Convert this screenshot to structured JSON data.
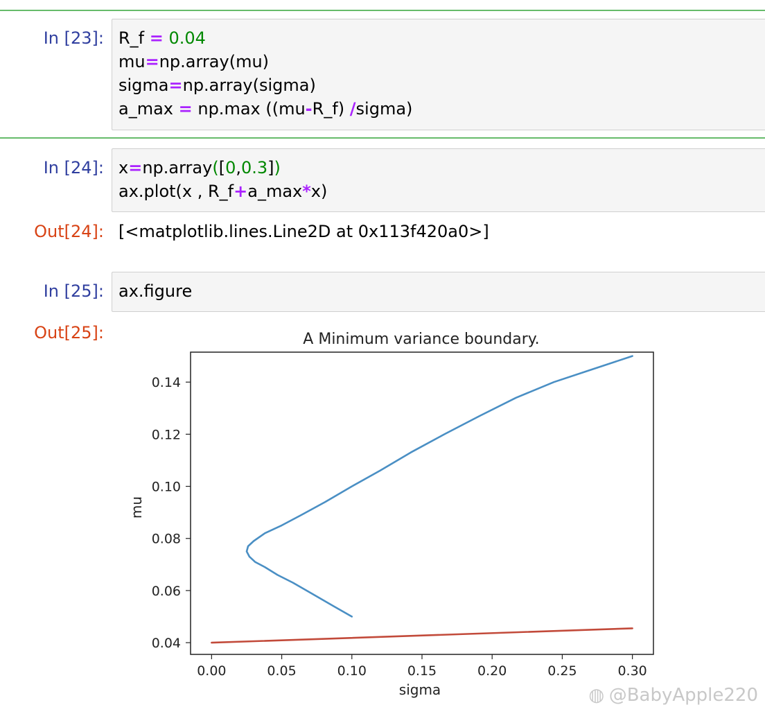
{
  "cells": [
    {
      "prompt": "In [23]:",
      "lines": [
        [
          [
            "R_f ",
            "txt"
          ],
          [
            "=",
            "op"
          ],
          [
            " ",
            "txt"
          ],
          [
            "0.04",
            "num"
          ]
        ],
        [
          [
            "mu",
            "txt"
          ],
          [
            "=",
            "op"
          ],
          [
            "np.array(mu)",
            "txt"
          ]
        ],
        [
          [
            "sigma",
            "txt"
          ],
          [
            "=",
            "op"
          ],
          [
            "np.array(sigma)",
            "txt"
          ]
        ],
        [
          [
            "a_max ",
            "txt"
          ],
          [
            "=",
            "op"
          ],
          [
            " np.max ((mu",
            "txt"
          ],
          [
            "-",
            "op"
          ],
          [
            "R_f) ",
            "txt"
          ],
          [
            "/",
            "op"
          ],
          [
            "sigma)",
            "txt"
          ]
        ]
      ]
    },
    {
      "prompt": "In [24]:",
      "lines": [
        [
          [
            "x",
            "txt"
          ],
          [
            "=",
            "op"
          ],
          [
            "np.array",
            "txt"
          ],
          [
            "(",
            "paren"
          ],
          [
            "[",
            "txt"
          ],
          [
            "0",
            "num"
          ],
          [
            ",",
            "txt"
          ],
          [
            "0.3",
            "num"
          ],
          [
            "]",
            "txt"
          ],
          [
            ")",
            "paren"
          ]
        ],
        [
          [
            "ax.plot(x , R_f",
            "txt"
          ],
          [
            "+",
            "op"
          ],
          [
            "a_max",
            "txt"
          ],
          [
            "*",
            "op"
          ],
          [
            "x)",
            "txt"
          ]
        ]
      ],
      "out_prompt": "Out[24]:",
      "output": "[<matplotlib.lines.Line2D at 0x113f420a0>]"
    },
    {
      "prompt": "In [25]:",
      "lines": [
        [
          [
            "ax.figure",
            "txt"
          ]
        ]
      ],
      "out_prompt": "Out[25]:"
    }
  ],
  "chart_data": {
    "type": "line",
    "title": "A Minimum variance boundary.",
    "xlabel": "sigma",
    "ylabel": "mu",
    "xlim": [
      -0.015,
      0.315
    ],
    "ylim": [
      0.0355,
      0.1515
    ],
    "xticks": [
      0.0,
      0.05,
      0.1,
      0.15,
      0.2,
      0.25,
      0.3
    ],
    "xtick_labels": [
      "0.00",
      "0.05",
      "0.10",
      "0.15",
      "0.20",
      "0.25",
      "0.30"
    ],
    "yticks": [
      0.04,
      0.06,
      0.08,
      0.1,
      0.12,
      0.14
    ],
    "ytick_labels": [
      "0.04",
      "0.06",
      "0.08",
      "0.10",
      "0.12",
      "0.14"
    ],
    "grid": false,
    "series": [
      {
        "color": "#4a8fc4",
        "x": [
          0.1,
          0.087,
          0.071,
          0.058,
          0.047,
          0.038,
          0.031,
          0.027,
          0.025,
          0.026,
          0.03,
          0.038,
          0.05,
          0.064,
          0.081,
          0.1,
          0.12,
          0.142,
          0.166,
          0.191,
          0.217,
          0.244,
          0.272,
          0.3
        ],
        "y": [
          0.05,
          0.054,
          0.059,
          0.063,
          0.066,
          0.069,
          0.071,
          0.073,
          0.075,
          0.077,
          0.079,
          0.082,
          0.085,
          0.089,
          0.094,
          0.1,
          0.106,
          0.113,
          0.12,
          0.127,
          0.134,
          0.14,
          0.145,
          0.15
        ]
      },
      {
        "color": "#c24a3a",
        "x": [
          0.0,
          0.3
        ],
        "y": [
          0.04,
          0.0455
        ]
      }
    ]
  },
  "watermark": "@BabyApple220",
  "watermark_icon": "weibo-icon"
}
